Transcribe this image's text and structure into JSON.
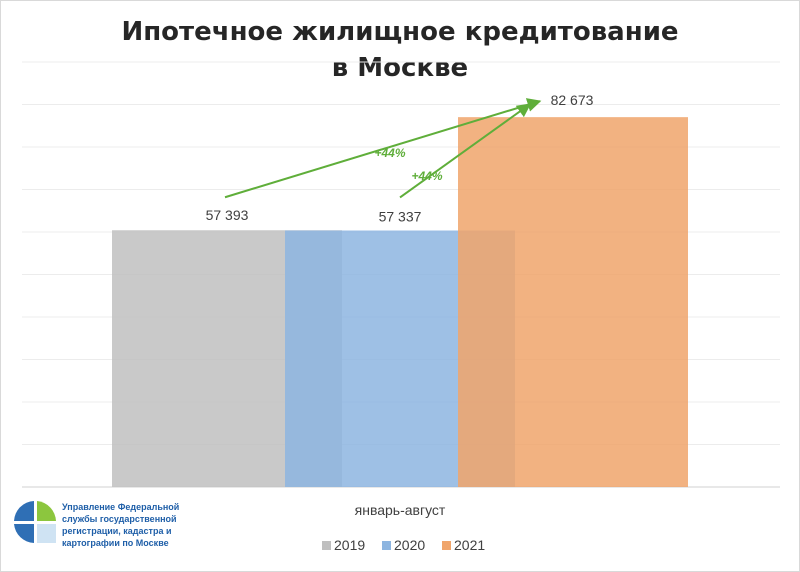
{
  "chart_data": {
    "type": "bar",
    "title": [
      "Ипотечное жилищное кредитование",
      "в Москве"
    ],
    "categories": [
      "январь-август"
    ],
    "series": [
      {
        "name": "2019",
        "values": [
          57393
        ],
        "label": "57 393",
        "color": "#bfbfbf"
      },
      {
        "name": "2020",
        "values": [
          57337
        ],
        "label": "57 337",
        "color": "#8db5e0"
      },
      {
        "name": "2021",
        "values": [
          82673
        ],
        "label": "82 673",
        "color": "#f0a56b"
      }
    ],
    "annotations": [
      {
        "text": "+44%",
        "from": "2019",
        "to": "2021"
      },
      {
        "text": "+44%",
        "from": "2020",
        "to": "2021"
      }
    ],
    "annotation_color": "#5fae3a",
    "ylim": [
      0,
      95000
    ],
    "grid": true,
    "legend_position": "bottom"
  },
  "footer": {
    "org_lines": [
      "Управление Федеральной",
      "службы государственной",
      "регистрации, кадастра и",
      "картографии по Москве"
    ],
    "logo_icon": "rosreestr-logo-icon"
  }
}
